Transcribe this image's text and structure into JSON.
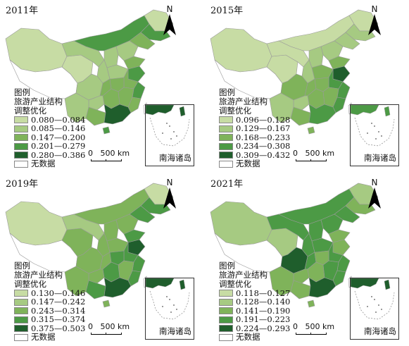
{
  "legend_title_lines": [
    "图例",
    "旅游产业结构",
    "调整优化"
  ],
  "no_data_label": "无数据",
  "scale_label": "0   500 km",
  "north_label": "N",
  "inset_label": "南海诸岛",
  "panels": [
    {
      "year_label": "2011年",
      "classes": [
        "0.080—0.084",
        "0.085—0.146",
        "0.147—0.200",
        "0.201—0.279",
        "0.280—0.386"
      ],
      "colors": [
        "#c7dca4",
        "#a6ca82",
        "#7fb35a",
        "#4c9a45",
        "#1f5e2c"
      ]
    },
    {
      "year_label": "2015年",
      "classes": [
        "0.096—0.128",
        "0.129—0.167",
        "0.168—0.233",
        "0.234—0.308",
        "0.309—0.432"
      ],
      "colors": [
        "#c7dca4",
        "#a6ca82",
        "#7fb35a",
        "#4c9a45",
        "#1f5e2c"
      ]
    },
    {
      "year_label": "2019年",
      "classes": [
        "0.130—0.146",
        "0.147—0.242",
        "0.243—0.314",
        "0.315—0.374",
        "0.375—0.503"
      ],
      "colors": [
        "#c7dca4",
        "#a6ca82",
        "#7fb35a",
        "#4c9a45",
        "#1f5e2c"
      ]
    },
    {
      "year_label": "2021年",
      "classes": [
        "0.118—0.127",
        "0.128—0.140",
        "0.141—0.190",
        "0.191—0.223",
        "0.224—0.293"
      ],
      "colors": [
        "#c7dca4",
        "#a6ca82",
        "#7fb35a",
        "#4c9a45",
        "#1f5e2c"
      ]
    }
  ]
}
